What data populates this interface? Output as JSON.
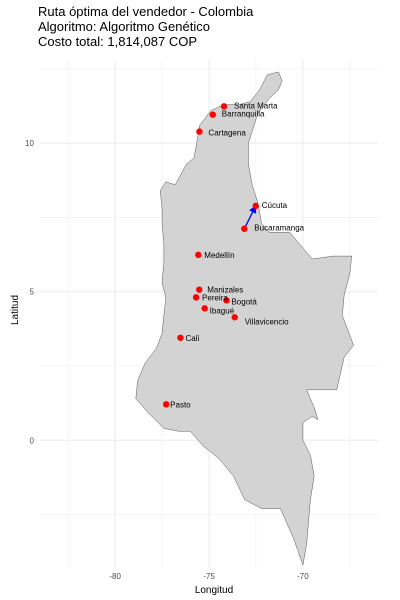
{
  "title": {
    "line1": "Ruta óptima del vendedor - Colombia",
    "line2": "Algoritmo: Algoritmo Genético",
    "line3": "Costo total: 1,814,087 COP"
  },
  "colors": {
    "land": "#d3d3d3",
    "grid": "#ebebeb",
    "city": "#ff0000",
    "route": "#0000ff"
  },
  "chart_data": {
    "type": "map-scatter",
    "xlabel": "Longitud",
    "ylabel": "Latitud",
    "xlim": [
      -84,
      -66
    ],
    "ylim": [
      -4.3,
      12.8
    ],
    "x_ticks": [
      -80,
      -75,
      -70
    ],
    "y_ticks": [
      0,
      5,
      10
    ],
    "grid": true,
    "cities": [
      {
        "name": "Santa Marta",
        "lon": -74.2,
        "lat": 11.24
      },
      {
        "name": "Barranquilla",
        "lon": -74.8,
        "lat": 10.96
      },
      {
        "name": "Cartagena",
        "lon": -75.51,
        "lat": 10.39
      },
      {
        "name": "Cúcuta",
        "lon": -72.51,
        "lat": 7.89
      },
      {
        "name": "Bucaramanga",
        "lon": -73.12,
        "lat": 7.12
      },
      {
        "name": "Medellín",
        "lon": -75.57,
        "lat": 6.24
      },
      {
        "name": "Manizales",
        "lon": -75.52,
        "lat": 5.07
      },
      {
        "name": "Pereira",
        "lon": -75.69,
        "lat": 4.81
      },
      {
        "name": "Bogotá",
        "lon": -74.07,
        "lat": 4.71
      },
      {
        "name": "Ibagué",
        "lon": -75.23,
        "lat": 4.44
      },
      {
        "name": "Villavicencio",
        "lon": -73.63,
        "lat": 4.14
      },
      {
        "name": "Cali",
        "lon": -76.52,
        "lat": 3.45
      },
      {
        "name": "Pasto",
        "lon": -77.28,
        "lat": 1.21
      }
    ],
    "route_segments": [
      {
        "from": "Bucaramanga",
        "to": "Cúcuta"
      }
    ]
  }
}
